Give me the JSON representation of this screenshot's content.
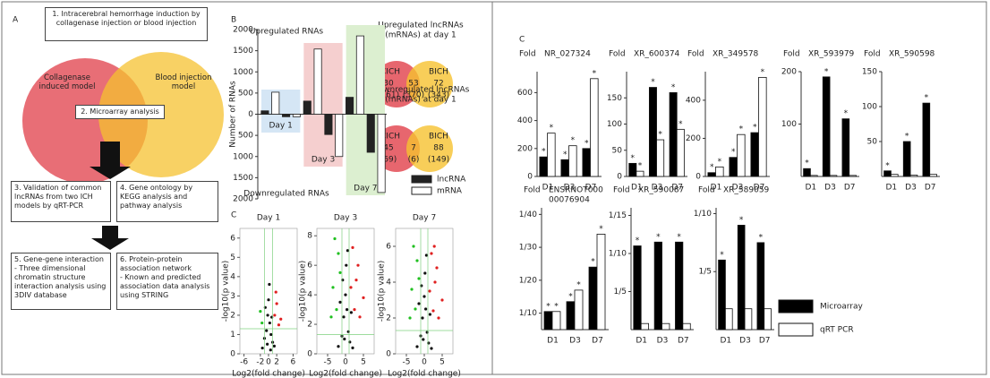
{
  "panel_a": {
    "label": "A",
    "steps": [
      "1. Intracerebral hemorrhage induction by collagenase injection or blood injection",
      "2. Microarray analysis",
      "3. Validation of common lncRNAs from two ICH models by qRT-PCR",
      "4. Gene ontology by KEGG analysis and pathway analysis",
      "5. Gene-gene interaction\n- Three dimensional chromatin structure interaction analysis using 3DIV database",
      "6. Protein-protein association network\n- Known and predicted association data analysis using STRING"
    ],
    "models": [
      "Collagenase induced model",
      "Blood injection model"
    ]
  },
  "panel_b": {
    "label": "B",
    "venns": [
      {
        "title": [
          "Upregulated lncRNAs",
          "(mRNAs) at day 1"
        ],
        "left": "CICH",
        "right": "BICH",
        "counts": [
          30,
          53,
          72
        ],
        "mrna_labels": [
          "(161)",
          "(370)",
          "(343)"
        ]
      },
      {
        "title": [
          "Downregulated lncRNAs",
          "(mRNAs) at day 1"
        ],
        "left": "CICH",
        "right": "BICH",
        "counts": [
          45,
          7,
          88
        ],
        "mrna_labels": [
          "(69)",
          "(6)",
          "(149)"
        ]
      }
    ]
  },
  "panel_c": {
    "labels": [
      "C",
      "C"
    ],
    "legend": [
      {
        "name": "Microarray",
        "color": "#000000"
      },
      {
        "name": "qRT PCR",
        "color": "#ffffff"
      }
    ]
  },
  "chart_data": [
    {
      "type": "diverging_bar",
      "y_label": "Number of RNAs",
      "annotations": [
        "Upregulated RNAs",
        "Downregulated RNAs"
      ],
      "categories": [
        "Day 1",
        "Day 3",
        "Day 7"
      ],
      "category_colors": [
        "#d5e6f5",
        "#f5cfcf",
        "#dcefd0"
      ],
      "series": [
        {
          "name": "lncRNA",
          "color": "#222222",
          "up": [
            80,
            310,
            400
          ],
          "down": [
            -60,
            -480,
            -900
          ]
        },
        {
          "name": "mRNA",
          "color": "#ffffff",
          "up": [
            520,
            1540,
            1850
          ],
          "down": [
            -60,
            -1000,
            -1850
          ]
        }
      ],
      "ylim": [
        -2000,
        2000
      ],
      "yticks": [
        {
          "value": -2000,
          "label": "2000"
        },
        {
          "value": -1500,
          "label": "1500"
        },
        {
          "value": -1000,
          "label": "1000"
        },
        {
          "value": -500,
          "label": "500"
        },
        0,
        500,
        1000,
        1500,
        2000
      ]
    },
    {
      "type": "scatter",
      "title": "Day 1",
      "x_label": "Log2(fold change)",
      "y_label": "-log10(p value)",
      "xlim": [
        -7,
        7
      ],
      "ylim": [
        0,
        6.5
      ],
      "xticks": [
        -6,
        -2,
        0,
        2,
        6
      ],
      "yticks": [
        0,
        1,
        2,
        3,
        4,
        5,
        6
      ],
      "threshold_x": [
        -1,
        1
      ],
      "threshold_y": 1.3,
      "groups": [
        {
          "color": "#111111",
          "x": [
            -1.5,
            -1,
            -0.5,
            -0.2,
            0,
            0.3,
            0.6,
            1,
            1.4,
            -0.8,
            0.2,
            0.8,
            -0.3,
            0.5
          ],
          "y": [
            0.3,
            0.8,
            1.2,
            2,
            2.8,
            1.6,
            1,
            0.6,
            0.4,
            2.4,
            3.6,
            1.9,
            0.5,
            0.2
          ]
        },
        {
          "color": "#e02020",
          "x": [
            1.5,
            2,
            2.5,
            1.8,
            3
          ],
          "y": [
            2,
            2.6,
            1.5,
            3.2,
            1.8
          ]
        },
        {
          "color": "#20c020",
          "x": [
            -1.6,
            -2
          ],
          "y": [
            1.6,
            2.2
          ]
        }
      ]
    },
    {
      "type": "scatter",
      "title": "Day 3",
      "x_label": "Log2(fold change)",
      "y_label": "-log10(p value)",
      "xlim": [
        -8,
        8
      ],
      "ylim": [
        0,
        8.5
      ],
      "xticks": [
        -5,
        0,
        5
      ],
      "yticks": [
        0,
        2,
        4,
        6,
        8
      ],
      "threshold_x": [
        -1,
        1
      ],
      "threshold_y": 1.3,
      "groups": [
        {
          "color": "#111111",
          "x": [
            -2,
            -1,
            -0.5,
            0,
            0.4,
            0.8,
            1.2,
            2,
            -1.5,
            0.2,
            -0.3,
            1.6,
            -0.8,
            0.6
          ],
          "y": [
            0.5,
            1.2,
            2.5,
            4,
            3,
            1.5,
            0.8,
            0.4,
            3.5,
            6,
            1,
            2.8,
            5,
            7
          ]
        },
        {
          "color": "#e02020",
          "x": [
            1.5,
            2.5,
            3.5,
            2,
            4,
            3,
            5
          ],
          "y": [
            4.5,
            3,
            6,
            7.2,
            2.5,
            5,
            3.8
          ]
        },
        {
          "color": "#20c020",
          "x": [
            -1.5,
            -2.5,
            -3.5,
            -2,
            -4,
            -3
          ],
          "y": [
            5.5,
            3,
            4.5,
            6.8,
            2.5,
            7.8
          ]
        }
      ]
    },
    {
      "type": "scatter",
      "title": "Day 7",
      "x_label": "Log2(fold change)",
      "y_label": "-log10(p value)",
      "xlim": [
        -8,
        8
      ],
      "ylim": [
        0,
        7
      ],
      "xticks": [
        -5,
        0,
        5
      ],
      "yticks": [
        0,
        2,
        4,
        6
      ],
      "threshold_x": [
        -1,
        1
      ],
      "threshold_y": 1.3,
      "groups": [
        {
          "color": "#111111",
          "x": [
            -2,
            -1,
            -0.5,
            0,
            0.4,
            0.8,
            1.2,
            2,
            -1.5,
            0.2,
            -0.3,
            1.6,
            -0.8,
            0.6
          ],
          "y": [
            0.4,
            1,
            2,
            3.2,
            2.5,
            1.2,
            0.6,
            0.3,
            2.8,
            4.5,
            0.8,
            2.2,
            3.8,
            5.5
          ]
        },
        {
          "color": "#e02020",
          "x": [
            1.5,
            2.5,
            3.5,
            2,
            4,
            3,
            5,
            2.8
          ],
          "y": [
            3.5,
            2.4,
            4.8,
            5.6,
            2,
            4,
            3,
            6
          ]
        },
        {
          "color": "#20c020",
          "x": [
            -1.5,
            -2.5,
            -3.5,
            -2,
            -4,
            -3
          ],
          "y": [
            4.2,
            2.5,
            3.6,
            5.2,
            2,
            6
          ]
        }
      ]
    },
    {
      "type": "bar",
      "y_label": "Fold",
      "title": "NR_027324",
      "categories": [
        "D1",
        "D3",
        "D7"
      ],
      "ylim": [
        0,
        750
      ],
      "yticks": [
        0,
        200,
        400,
        600
      ],
      "series": [
        {
          "values": [
            140,
            120,
            200
          ],
          "annotations": [
            "*",
            "*",
            "*"
          ]
        },
        {
          "values": [
            310,
            220,
            700
          ],
          "annotations": [
            "*",
            "*",
            "*"
          ]
        }
      ]
    },
    {
      "type": "bar",
      "y_label": "Fold",
      "title": "XR_600374",
      "categories": [
        "D1",
        "D3",
        "D7"
      ],
      "ylim": [
        0,
        200
      ],
      "yticks": [
        0,
        50,
        100,
        150
      ],
      "series": [
        {
          "values": [
            25,
            170,
            160
          ],
          "annotations": [
            "*",
            "*",
            "*"
          ]
        },
        {
          "values": [
            10,
            70,
            90
          ],
          "annotations": [
            "*",
            "*",
            "*"
          ]
        }
      ]
    },
    {
      "type": "bar",
      "y_label": "Fold",
      "title": "XR_349578",
      "categories": [
        "D1",
        "D3",
        "D7"
      ],
      "ylim": [
        0,
        550
      ],
      "yticks": [
        0,
        200,
        400
      ],
      "series": [
        {
          "values": [
            20,
            100,
            230
          ],
          "annotations": [
            "*",
            "*",
            "*"
          ]
        },
        {
          "values": [
            50,
            220,
            520
          ],
          "annotations": [
            "*",
            "*",
            "*"
          ]
        }
      ]
    },
    {
      "type": "bar",
      "y_label": "Fold",
      "title": "XR_593979",
      "categories": [
        "D1",
        "D3",
        "D7"
      ],
      "ylim": [
        0,
        200
      ],
      "yticks": [
        100,
        200
      ],
      "series": [
        {
          "values": [
            15,
            190,
            110
          ],
          "annotations": [
            "*",
            "*",
            "*"
          ]
        },
        {
          "values": [
            2,
            2,
            2
          ],
          "annotations": [
            null,
            null,
            null
          ]
        }
      ]
    },
    {
      "type": "bar",
      "y_label": "Fold",
      "title": "XR_590598",
      "categories": [
        "D1",
        "D3",
        "D7"
      ],
      "ylim": [
        0,
        150
      ],
      "yticks": [
        50,
        100,
        150
      ],
      "series": [
        {
          "values": [
            8,
            50,
            105
          ],
          "annotations": [
            "*",
            "*",
            "*"
          ]
        },
        {
          "values": [
            3,
            2,
            3
          ],
          "annotations": [
            null,
            null,
            null
          ]
        }
      ]
    },
    {
      "type": "bar",
      "y_label": "Fold",
      "title": [
        "ENSRNOT000",
        "00076904"
      ],
      "categories": [
        "D1",
        "D3",
        "D7"
      ],
      "ylim": [
        5,
        42
      ],
      "yticks": [
        {
          "value": 10,
          "label": "1/10"
        },
        {
          "value": 20,
          "label": "1/20"
        },
        {
          "value": 30,
          "label": "1/30"
        },
        {
          "value": 40,
          "label": "1/40"
        }
      ],
      "series": [
        {
          "values": [
            10.5,
            13.5,
            24
          ],
          "annotations": [
            "*",
            "*",
            "*"
          ]
        },
        {
          "values": [
            10.5,
            17,
            34
          ],
          "annotations": [
            "*",
            "*",
            "*"
          ]
        }
      ]
    },
    {
      "type": "bar",
      "y_label": "Fold",
      "title": "XR_590087",
      "categories": [
        "D1",
        "D3",
        "D7"
      ],
      "ylim": [
        0,
        16
      ],
      "yticks": [
        {
          "value": 5,
          "label": "1/5"
        },
        {
          "value": 10,
          "label": "1/10"
        },
        {
          "value": 15,
          "label": "1/15"
        }
      ],
      "series": [
        {
          "values": [
            11,
            11.5,
            11.5
          ],
          "annotations": [
            "*",
            "*",
            "*"
          ]
        },
        {
          "values": [
            0.8,
            0.8,
            0.8
          ],
          "annotations": [
            null,
            null,
            null
          ]
        }
      ]
    },
    {
      "type": "bar",
      "y_label": "Fold",
      "title": "XR_589059",
      "categories": [
        "D1",
        "D3",
        "D7"
      ],
      "ylim": [
        0,
        10.5
      ],
      "yticks": [
        {
          "value": 5,
          "label": "1/5"
        },
        {
          "value": 10,
          "label": "1/10"
        }
      ],
      "series": [
        {
          "values": [
            6,
            9,
            7.5
          ],
          "annotations": [
            "*",
            "*",
            "*"
          ]
        },
        {
          "values": [
            1.8,
            1.8,
            1.8
          ],
          "annotations": [
            null,
            null,
            null
          ]
        }
      ]
    }
  ]
}
